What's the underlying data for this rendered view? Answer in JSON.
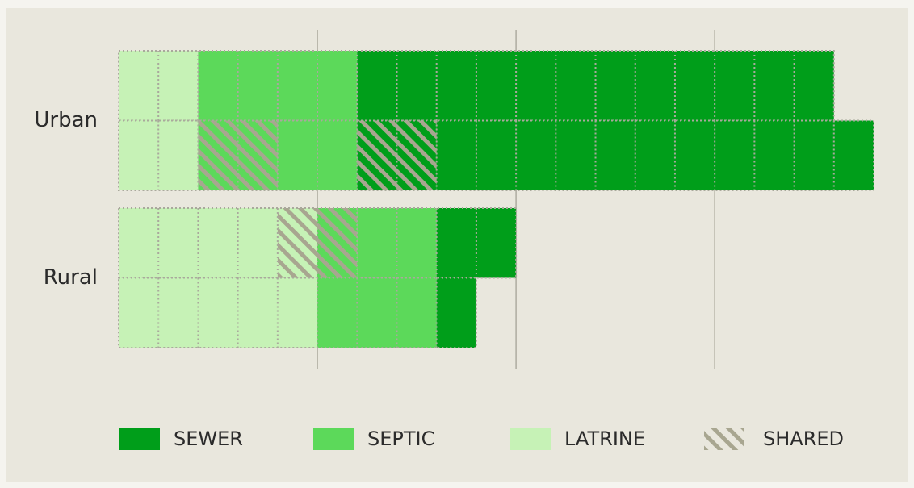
{
  "chart_data": {
    "type": "waffle",
    "categories": [
      "Urban",
      "Rural"
    ],
    "series": [
      {
        "name": "SEWER",
        "color": "#009e1a",
        "values": [
          [
            12,
            11
          ],
          [
            2,
            1
          ]
        ],
        "shared": [
          [
            0,
            2
          ],
          [
            0,
            0
          ]
        ]
      },
      {
        "name": "SEPTIC",
        "color": "#5cd95a",
        "values": [
          [
            4,
            2
          ],
          [
            2,
            3
          ]
        ],
        "shared": [
          [
            0,
            2
          ],
          [
            1,
            0
          ]
        ]
      },
      {
        "name": "LATRINE",
        "color": "#c6f2b6",
        "values": [
          [
            2,
            2
          ],
          [
            4,
            5
          ]
        ],
        "shared": [
          [
            0,
            0
          ],
          [
            1,
            0
          ]
        ]
      }
    ],
    "shared_label": "SHARED",
    "shared_color": "#a8a690",
    "xlim": [
      0,
      19
    ],
    "xticks": [
      5,
      10,
      15
    ],
    "grid": true
  }
}
